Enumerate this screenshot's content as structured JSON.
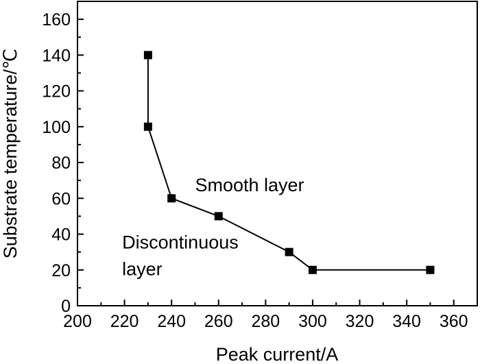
{
  "chart_data": {
    "type": "line",
    "title": "",
    "xlabel": "Peak current/A",
    "ylabel": "Substrate temperature/℃",
    "xlim": [
      200,
      370
    ],
    "ylim": [
      0,
      170
    ],
    "xticks": [
      200,
      220,
      240,
      260,
      280,
      300,
      320,
      340,
      360
    ],
    "yticks": [
      0,
      20,
      40,
      60,
      80,
      100,
      120,
      140,
      160
    ],
    "grid": false,
    "legend": "none",
    "series": [
      {
        "x": [
          230,
          230,
          240,
          260,
          290,
          300,
          350
        ],
        "y": [
          140,
          100,
          60,
          50,
          30,
          20,
          20
        ],
        "marker": "square",
        "color": "#000000"
      }
    ],
    "annotations": [
      {
        "text": "Smooth layer",
        "x": 250,
        "y": 64
      },
      {
        "text": "Discontinuous",
        "x": 219,
        "y": 32
      },
      {
        "text": "layer",
        "x": 219,
        "y": 17
      }
    ]
  }
}
